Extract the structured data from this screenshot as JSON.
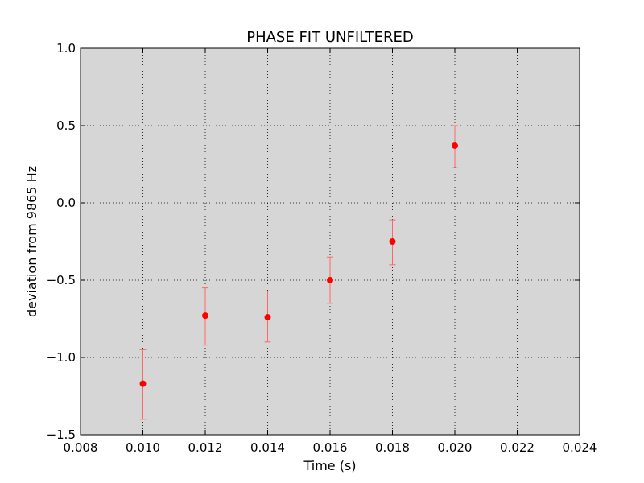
{
  "chart_data": {
    "type": "scatter",
    "title": "PHASE FIT UNFILTERED",
    "xlabel": "Time (s)",
    "ylabel": "deviation from 9865 Hz",
    "xlim": [
      0.008,
      0.024
    ],
    "ylim": [
      -1.5,
      1.0
    ],
    "x_ticks": [
      "0.008",
      "0.010",
      "0.012",
      "0.014",
      "0.016",
      "0.018",
      "0.020",
      "0.022",
      "0.024"
    ],
    "y_ticks": [
      "1.0",
      "0.5",
      "0.0",
      "−0.5",
      "−1.0",
      "−1.5"
    ],
    "grid": true,
    "background_color": "#d6d6d6",
    "marker_color": "#ff0000",
    "errorbar_color": "#ff6666",
    "series": [
      {
        "x": [
          0.01,
          0.012,
          0.014,
          0.016,
          0.018,
          0.02
        ],
        "y": [
          -1.17,
          -0.73,
          -0.74,
          -0.5,
          -0.25,
          0.37
        ],
        "yerr_low": [
          -1.4,
          -0.92,
          -0.9,
          -0.65,
          -0.4,
          0.23
        ],
        "yerr_high": [
          -0.95,
          -0.55,
          -0.57,
          -0.35,
          -0.11,
          0.5
        ]
      }
    ]
  }
}
